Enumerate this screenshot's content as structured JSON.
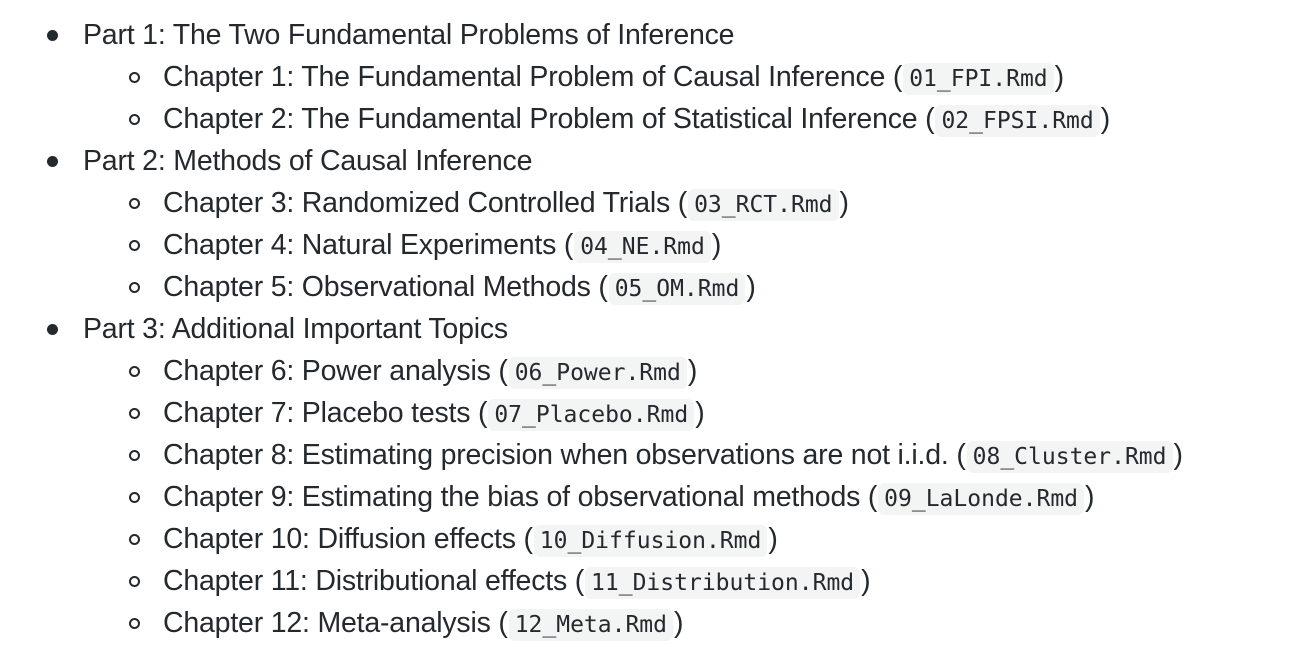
{
  "outline": {
    "parts": [
      {
        "label": "Part 1: The Two Fundamental Problems of Inference",
        "chapters": [
          {
            "label": "Chapter 1: The Fundamental Problem of Causal Inference",
            "file": "01_FPI.Rmd"
          },
          {
            "label": "Chapter 2: The Fundamental Problem of Statistical Inference",
            "file": "02_FPSI.Rmd"
          }
        ]
      },
      {
        "label": "Part 2: Methods of Causal Inference",
        "chapters": [
          {
            "label": "Chapter 3: Randomized Controlled Trials",
            "file": "03_RCT.Rmd"
          },
          {
            "label": "Chapter 4: Natural Experiments",
            "file": "04_NE.Rmd"
          },
          {
            "label": "Chapter 5: Observational Methods",
            "file": "05_OM.Rmd"
          }
        ]
      },
      {
        "label": "Part 3: Additional Important Topics",
        "chapters": [
          {
            "label": "Chapter 6: Power analysis",
            "file": "06_Power.Rmd"
          },
          {
            "label": "Chapter 7: Placebo tests",
            "file": "07_Placebo.Rmd"
          },
          {
            "label": "Chapter 8: Estimating precision when observations are not i.i.d.",
            "file": "08_Cluster.Rmd"
          },
          {
            "label": "Chapter 9: Estimating the bias of observational methods",
            "file": "09_LaLonde.Rmd"
          },
          {
            "label": "Chapter 10: Diffusion effects",
            "file": "10_Diffusion.Rmd"
          },
          {
            "label": "Chapter 11: Distributional effects",
            "file": "11_Distribution.Rmd"
          },
          {
            "label": "Chapter 12: Meta-analysis",
            "file": "12_Meta.Rmd"
          }
        ]
      }
    ]
  }
}
